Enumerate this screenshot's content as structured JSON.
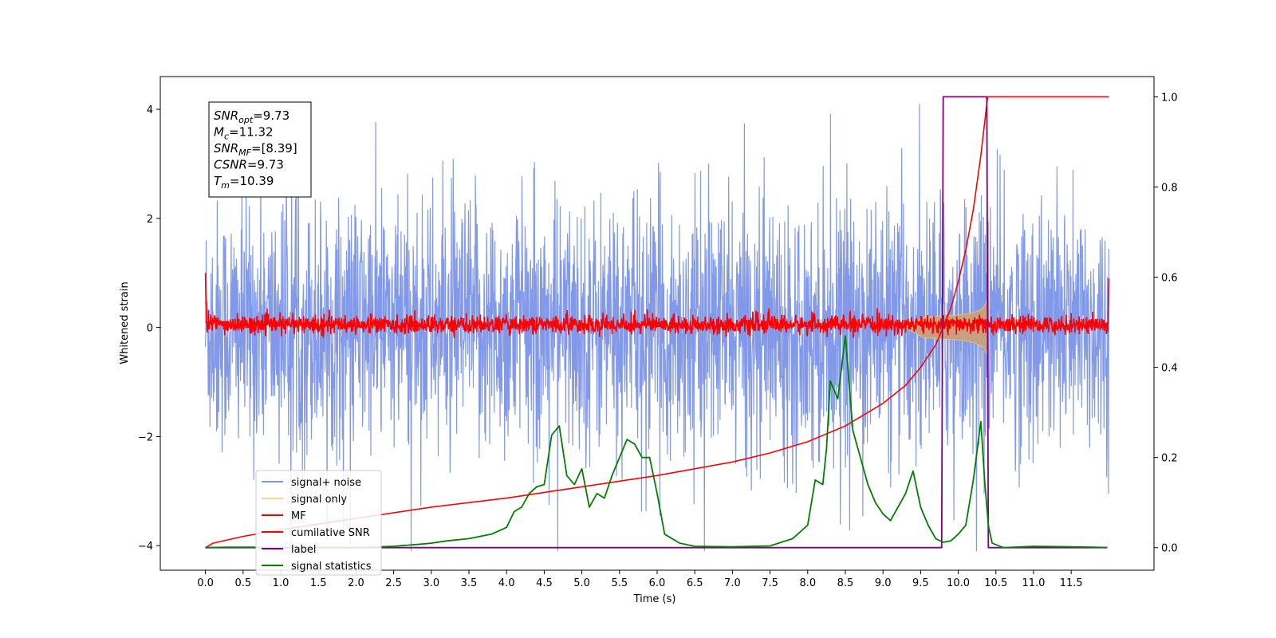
{
  "chart_data": {
    "type": "line",
    "xlabel": "Time (s)",
    "ylabel_left": "Whitened strain",
    "ylabel_right": "",
    "xlim": [
      -0.6,
      12.6
    ],
    "ylim_left": [
      -4.45,
      4.6
    ],
    "ylim_right": [
      -0.05,
      1.045
    ],
    "x_ticks": [
      0.0,
      0.5,
      1.0,
      1.5,
      2.0,
      2.5,
      3.0,
      3.5,
      4.0,
      4.5,
      5.0,
      5.5,
      6.0,
      6.5,
      7.0,
      7.5,
      8.0,
      8.5,
      9.0,
      9.5,
      10.0,
      10.5,
      11.0,
      11.5
    ],
    "x_tick_labels": [
      "0.0",
      "0.5",
      "1.0",
      "1.5",
      "2.0",
      "2.5",
      "3.0",
      "3.5",
      "4.0",
      "4.5",
      "5.0",
      "5.5",
      "6.0",
      "6.5",
      "7.0",
      "7.5",
      "8.0",
      "8.5",
      "9.0",
      "9.5",
      "10.0",
      "10.5",
      "11.0",
      "11.5"
    ],
    "y_left_ticks": [
      -4,
      -2,
      0,
      2,
      4
    ],
    "y_left_tick_labels": [
      "−4",
      "−2",
      "0",
      "2",
      "4"
    ],
    "y_right_ticks": [
      0.0,
      0.2,
      0.4,
      0.6,
      0.8,
      1.0
    ],
    "y_right_tick_labels": [
      "0.0",
      "0.2",
      "0.4",
      "0.6",
      "0.8",
      "1.0"
    ],
    "grid": false,
    "legend_position": "lower-left",
    "info_box": [
      {
        "base": "SNR",
        "sub": "opt",
        "value": "=9.73"
      },
      {
        "base": "M",
        "sub": "c",
        "value": "=11.32"
      },
      {
        "base": "SNR",
        "sub": "MF",
        "value": "=[8.39]"
      },
      {
        "base": "CSNR",
        "sub": "",
        "value": "=9.73"
      },
      {
        "base": "T",
        "sub": "m",
        "value": "=10.39"
      }
    ],
    "series": [
      {
        "name": "signal+ noise",
        "color": "#7b93e8",
        "axis": "left",
        "approx_range": [
          -4.1,
          4.1
        ],
        "t_range": [
          0.0,
          12.0
        ]
      },
      {
        "name": "signal only",
        "color": "#f5c36b",
        "axis": "left",
        "envelope_start_t": 9.3,
        "merger_t": 10.39,
        "peak_amplitude": 0.88
      },
      {
        "name": "MF",
        "color": "#ff0000",
        "axis": "left",
        "approx_range": [
          -0.25,
          0.35
        ],
        "t_range": [
          0.0,
          12.0
        ]
      },
      {
        "name": "cumilative SNR",
        "color": "#ff0000",
        "axis": "right",
        "x": [
          0.0,
          0.1,
          0.5,
          1.0,
          2.0,
          3.0,
          4.0,
          5.0,
          6.0,
          7.0,
          7.5,
          8.0,
          8.5,
          9.0,
          9.3,
          9.5,
          9.7,
          9.9,
          10.0,
          10.1,
          10.2,
          10.3,
          10.39,
          11.0,
          12.0
        ],
        "y": [
          0.0,
          0.01,
          0.025,
          0.04,
          0.065,
          0.09,
          0.11,
          0.135,
          0.16,
          0.19,
          0.21,
          0.235,
          0.27,
          0.32,
          0.36,
          0.4,
          0.45,
          0.53,
          0.59,
          0.66,
          0.75,
          0.87,
          1.0,
          1.0,
          1.0
        ]
      },
      {
        "name": "label",
        "color": "#800080",
        "axis": "right",
        "x": [
          0.0,
          9.78,
          9.8,
          10.38,
          10.4,
          11.98
        ],
        "y": [
          0.0,
          0.0,
          1.0,
          1.0,
          0.0,
          0.0
        ]
      },
      {
        "name": "signal statistics",
        "color": "#008000",
        "axis": "right",
        "x": [
          0.0,
          0.3,
          0.6,
          1.0,
          1.5,
          2.0,
          2.5,
          2.8,
          3.0,
          3.2,
          3.5,
          3.8,
          4.0,
          4.1,
          4.2,
          4.3,
          4.4,
          4.5,
          4.6,
          4.7,
          4.8,
          4.9,
          5.0,
          5.1,
          5.2,
          5.3,
          5.4,
          5.5,
          5.6,
          5.7,
          5.8,
          5.9,
          6.0,
          6.1,
          6.3,
          6.5,
          7.0,
          7.5,
          7.8,
          8.0,
          8.1,
          8.2,
          8.25,
          8.3,
          8.4,
          8.5,
          8.6,
          8.7,
          8.8,
          8.9,
          9.0,
          9.1,
          9.3,
          9.4,
          9.5,
          9.6,
          9.7,
          9.8,
          9.9,
          10.0,
          10.1,
          10.2,
          10.3,
          10.35,
          10.4,
          10.45,
          10.6,
          11.0,
          11.5,
          11.8,
          11.98
        ],
        "y": [
          0.0,
          0.001,
          0.001,
          0.0,
          0.0,
          0.0,
          0.003,
          0.007,
          0.01,
          0.015,
          0.02,
          0.03,
          0.045,
          0.08,
          0.09,
          0.12,
          0.135,
          0.14,
          0.25,
          0.27,
          0.16,
          0.14,
          0.175,
          0.09,
          0.12,
          0.11,
          0.16,
          0.2,
          0.24,
          0.23,
          0.2,
          0.2,
          0.12,
          0.03,
          0.01,
          0.003,
          0.002,
          0.004,
          0.02,
          0.05,
          0.15,
          0.14,
          0.22,
          0.37,
          0.33,
          0.47,
          0.26,
          0.2,
          0.14,
          0.1,
          0.075,
          0.06,
          0.12,
          0.17,
          0.09,
          0.05,
          0.02,
          0.012,
          0.015,
          0.03,
          0.05,
          0.15,
          0.28,
          0.15,
          0.05,
          0.01,
          0.0,
          0.003,
          0.002,
          0.001,
          0.0
        ]
      }
    ]
  }
}
